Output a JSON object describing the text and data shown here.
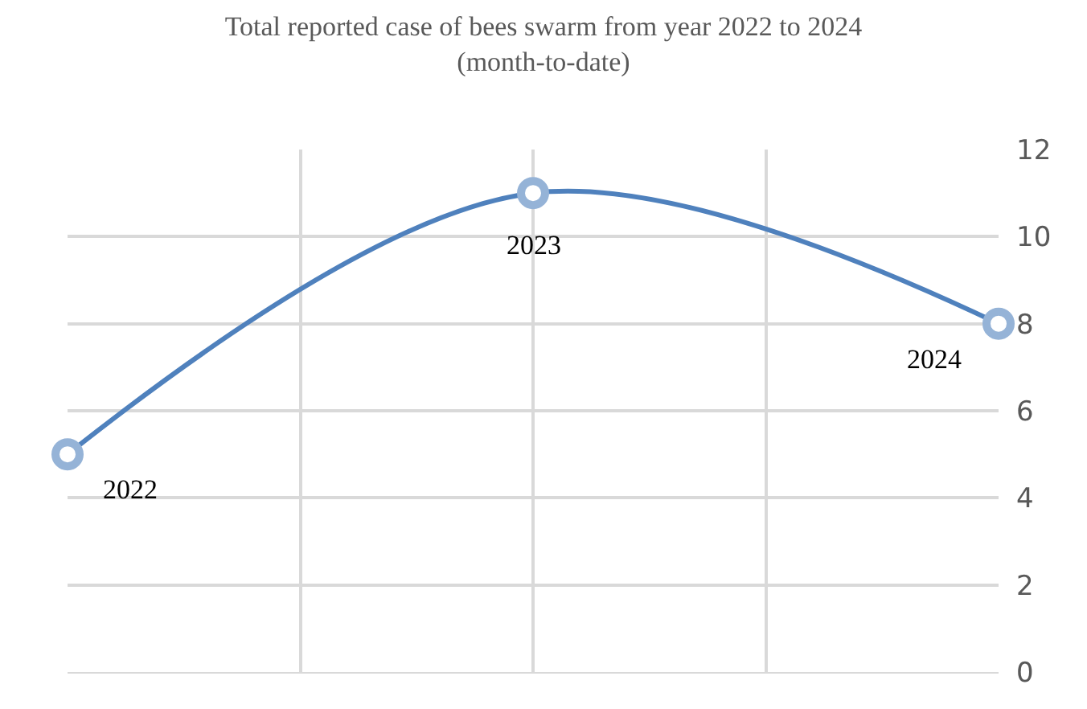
{
  "chart_data": {
    "type": "line",
    "title": "Total reported case of bees swarm from year 2022 to 2024\n(month-to-date)",
    "categories": [
      null,
      null,
      null
    ],
    "series": [
      {
        "color": "#4f81bd",
        "values": [
          5,
          11,
          8
        ]
      }
    ],
    "annotations": [
      "2022",
      "2023",
      "2024"
    ],
    "ylim": [
      0,
      12
    ],
    "yticks": [
      0,
      2,
      4,
      6,
      8,
      10,
      12
    ],
    "grid": true,
    "tick_labels": "y",
    "marker": "circle",
    "line_style": "solid",
    "legend": false
  }
}
